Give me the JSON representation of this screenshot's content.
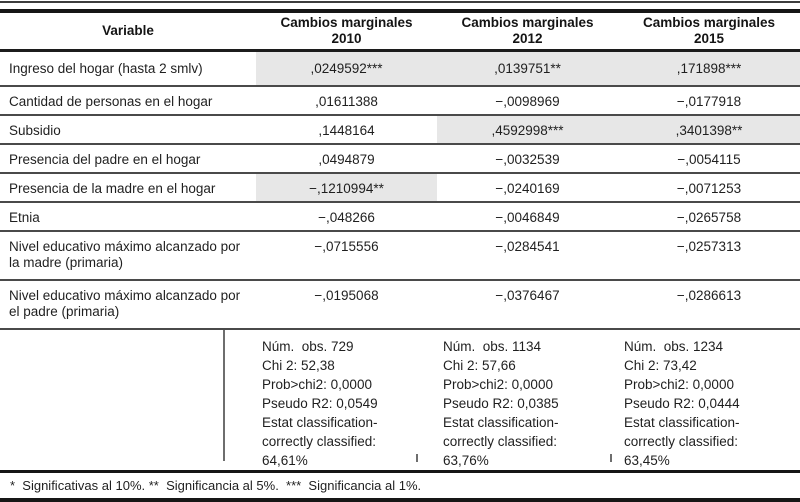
{
  "table": {
    "headers": {
      "variable": "Variable",
      "col2010": "Cambios marginales\n2010",
      "col2012": "Cambios marginales\n2012",
      "col2015": "Cambios marginales\n2015"
    },
    "rows": [
      {
        "variable": "Ingreso del hogar (hasta 2 smlv)",
        "y2010": ",0249592***",
        "y2012": ",0139751**",
        "y2015": ",171898***"
      },
      {
        "variable": "Cantidad de personas en el hogar",
        "y2010": ",01611388",
        "y2012": "−,0098969",
        "y2015": "−,0177918"
      },
      {
        "variable": "Subsidio",
        "y2010": ",1448164",
        "y2012": ",4592998***",
        "y2015": ",3401398**"
      },
      {
        "variable": "Presencia del padre en el hogar",
        "y2010": ",0494879",
        "y2012": "−,0032539",
        "y2015": "−,0054115"
      },
      {
        "variable": "Presencia de la madre en el hogar",
        "y2010": "−,1210994**",
        "y2012": "−,0240169",
        "y2015": "−,0071253"
      },
      {
        "variable": "Etnia",
        "y2010": "−,048266",
        "y2012": "−,0046849",
        "y2015": "−,0265758"
      },
      {
        "variable": "Nivel educativo máximo alcanzado por la madre (primaria)",
        "y2010": "−,0715556",
        "y2012": "−,0284541",
        "y2015": "−,0257313"
      },
      {
        "variable": "Nivel educativo máximo alcanzado por el padre (primaria)",
        "y2010": "−,0195068",
        "y2012": "−,0376467",
        "y2015": "−,0286613"
      }
    ],
    "stats": {
      "col2010": "Núm.  obs. 729\nChi 2: 52,38\nProb>chi2: 0,0000\nPseudo R2: 0,0549\nEstat classification-\ncorrectly classified:\n64,61%",
      "col2012": "Núm.  obs. 1134\nChi 2: 57,66\nProb>chi2: 0,0000\nPseudo R2: 0,0385\nEstat classification-\ncorrectly classified:\n63,76%",
      "col2015": "Núm.  obs. 1234\nChi 2: 73,42\nProb>chi2: 0,0000\nPseudo R2: 0,0444\nEstat classification-\ncorrectly classified:\n63,45%"
    },
    "footnote": "*  Significativas al 10%. **  Significancia al 5%.  ***  Significancia al 1%.",
    "significance_shading_color": "#e7e7e7"
  }
}
